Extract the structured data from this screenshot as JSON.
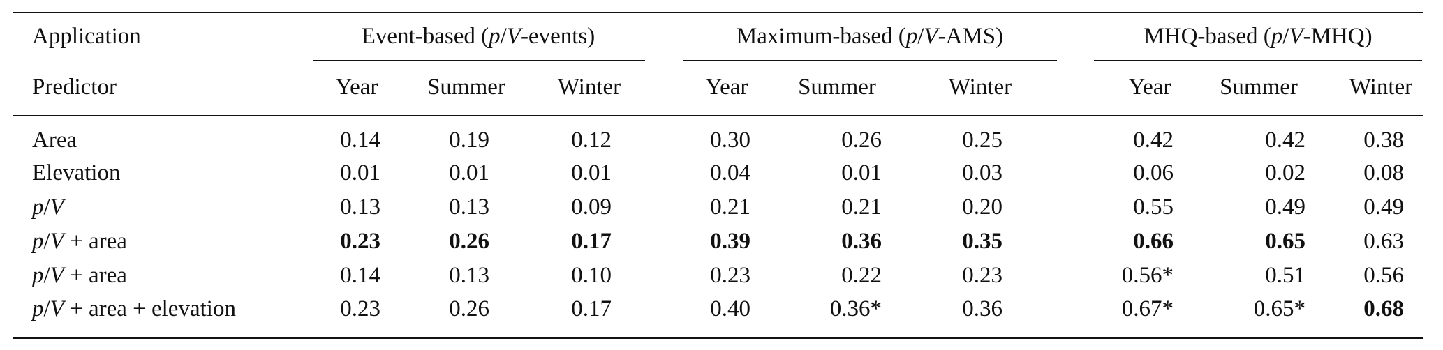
{
  "table": {
    "header": {
      "group_label": "Application",
      "groups": [
        "Event-based (p/V-events)",
        "Maximum-based (p/V-AMS)",
        "MHQ-based (p/V-MHQ)"
      ],
      "row_label": "Predictor",
      "columns": [
        "Year",
        "Summer",
        "Winter",
        "Year",
        "Summer",
        "Winter",
        "Year",
        "Summer",
        "Winter"
      ]
    },
    "rows": [
      {
        "predictor": "Area",
        "values": [
          "0.14",
          "0.19",
          "0.12",
          "0.30",
          "0.26",
          "0.25",
          "0.42",
          "0.42",
          "0.38"
        ],
        "bold": [
          false,
          false,
          false,
          false,
          false,
          false,
          false,
          false,
          false
        ]
      },
      {
        "predictor": "Elevation",
        "values": [
          "0.01",
          "0.01",
          "0.01",
          "0.04",
          "0.01",
          "0.03",
          "0.06",
          "0.02",
          "0.08"
        ],
        "bold": [
          false,
          false,
          false,
          false,
          false,
          false,
          false,
          false,
          false
        ]
      },
      {
        "predictor": "p/V",
        "values": [
          "0.13",
          "0.13",
          "0.09",
          "0.21",
          "0.21",
          "0.20",
          "0.55",
          "0.49",
          "0.49"
        ],
        "bold": [
          false,
          false,
          false,
          false,
          false,
          false,
          false,
          false,
          false
        ]
      },
      {
        "predictor": "p/V + area",
        "values": [
          "0.23",
          "0.26",
          "0.17",
          "0.39",
          "0.36",
          "0.35",
          "0.66",
          "0.65",
          "0.63"
        ],
        "bold": [
          true,
          true,
          true,
          true,
          true,
          true,
          true,
          true,
          false
        ]
      },
      {
        "predictor": "p/V + area",
        "values": [
          "0.14",
          "0.13",
          "0.10",
          "0.23",
          "0.22",
          "0.23",
          "0.56*",
          "0.51",
          "0.56"
        ],
        "bold": [
          false,
          false,
          false,
          false,
          false,
          false,
          false,
          false,
          false
        ]
      },
      {
        "predictor": "p/V + area + elevation",
        "values": [
          "0.23",
          "0.26",
          "0.17",
          "0.40",
          "0.36*",
          "0.36",
          "0.67*",
          "0.65*",
          "0.68"
        ],
        "bold": [
          false,
          false,
          false,
          false,
          false,
          false,
          false,
          false,
          true
        ]
      }
    ]
  }
}
